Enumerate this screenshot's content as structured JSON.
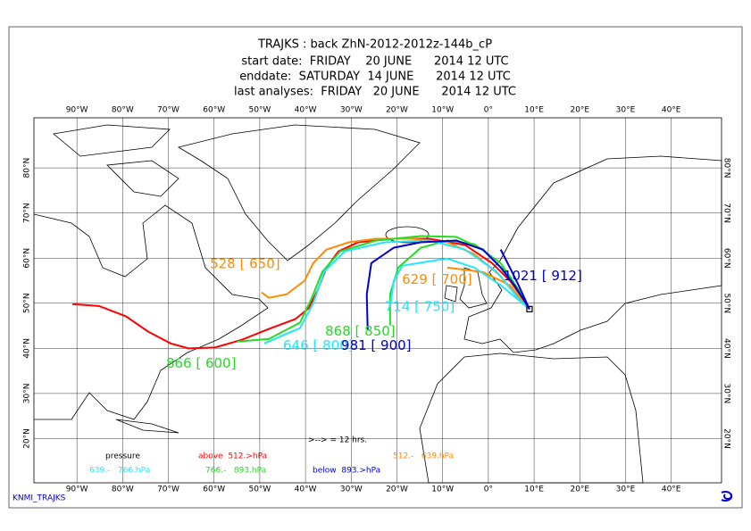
{
  "header": {
    "lines": [
      "TRAJKS : back ZhN-2012-2012z-144b_cP",
      "start date:  FRIDAY    20 JUNE      2014 12 UTC",
      "enddate:  SATURDAY  14 JUNE      2014 12 UTC",
      "last analyses:  FRIDAY   20 JUNE      2014 12 UTC"
    ]
  },
  "map": {
    "lonlim": [
      -99.4,
      51
    ],
    "latlim": [
      10.2,
      91.1
    ],
    "lonticks": [
      {
        "value": -90,
        "label": "90°W"
      },
      {
        "value": -80,
        "label": "80°W"
      },
      {
        "value": -70,
        "label": "70°W"
      },
      {
        "value": -60,
        "label": "60°W"
      },
      {
        "value": -50,
        "label": "50°W"
      },
      {
        "value": -40,
        "label": "40°W"
      },
      {
        "value": -30,
        "label": "30°W"
      },
      {
        "value": -20,
        "label": "20°W"
      },
      {
        "value": -10,
        "label": "10°W"
      },
      {
        "value": 0,
        "label": "0°"
      },
      {
        "value": 10,
        "label": "10°E"
      },
      {
        "value": 20,
        "label": "20°E"
      },
      {
        "value": 30,
        "label": "30°E"
      },
      {
        "value": 40,
        "label": "40°E"
      }
    ],
    "latticks": [
      {
        "value": 20,
        "label": "20°N"
      },
      {
        "value": 30,
        "label": "30°N"
      },
      {
        "value": 40,
        "label": "40°N"
      },
      {
        "value": 50,
        "label": "50°N"
      },
      {
        "value": 60,
        "label": "60°N"
      },
      {
        "value": 70,
        "label": "70°N"
      },
      {
        "value": 80,
        "label": "80°N"
      }
    ],
    "trajectories": [
      {
        "color": "#ff0000",
        "lon": [
          -91.0,
          -85.2,
          -79.3,
          -74.4,
          -69.5,
          -65.6,
          -59.8,
          -53.9,
          -48.0,
          -42.2,
          -39.3,
          -37.3,
          -35.4,
          -32.8,
          -28.5,
          -20.7,
          -12.9,
          -5.1,
          0.8,
          4.7,
          7.6,
          9.0
        ],
        "lat": [
          49.8,
          49.4,
          47.1,
          43.7,
          41.1,
          40.0,
          40.2,
          41.9,
          44.3,
          46.5,
          48.9,
          53.0,
          57.9,
          61.5,
          63.5,
          64.3,
          64.3,
          62.9,
          58.9,
          55.0,
          51.0,
          48.7
        ]
      },
      {
        "color": "#ff8c00",
        "lon": [
          -49.6,
          -48.0,
          -44.1,
          -40.2,
          -38.3,
          -35.4,
          -30.5,
          -24.6,
          -16.8,
          -9.0,
          -3.1,
          2.7,
          6.6,
          9.0
        ],
        "lat": [
          52.4,
          51.2,
          52.0,
          55.0,
          58.9,
          61.9,
          63.5,
          64.3,
          64.3,
          63.5,
          60.9,
          56.0,
          51.0,
          48.7
        ]
      },
      {
        "color": "#ff8c00",
        "lon": [
          -9.0,
          -1.2,
          4.7,
          9.0
        ],
        "lat": [
          57.9,
          56.9,
          54.0,
          48.7
        ]
      },
      {
        "color": "#22dd22",
        "lon": [
          -54.9,
          -48.0,
          -41.2,
          -38.7,
          -36.3,
          -32.4,
          -24.6,
          -14.8,
          -7.0,
          -1.2,
          4.7,
          9.0
        ],
        "lat": [
          41.5,
          42.1,
          45.7,
          51.0,
          57.0,
          61.5,
          63.9,
          64.9,
          64.7,
          61.9,
          56.0,
          48.7
        ]
      },
      {
        "color": "#22dd22",
        "lon": [
          -21.5,
          -21.5,
          -19.7,
          -14.8,
          -9.0,
          -3.1,
          2.7,
          6.6,
          9.0
        ],
        "lat": [
          45.1,
          52.0,
          57.9,
          62.3,
          63.9,
          63.1,
          58.9,
          53.0,
          48.7
        ]
      },
      {
        "color": "#22e5ff",
        "lon": [
          -49.0,
          -41.2,
          -38.3,
          -35.9,
          -31.4,
          -22.7,
          -12.9,
          -5.1,
          1.8,
          6.6,
          9.0
        ],
        "lat": [
          41.1,
          44.5,
          50.0,
          57.0,
          61.5,
          63.5,
          63.9,
          61.9,
          57.0,
          51.0,
          48.7
        ]
      },
      {
        "color": "#22e5ff",
        "lon": [
          -21.5,
          -20.7,
          -18.8,
          -12.9,
          -9.0,
          -3.1,
          2.7,
          9.0
        ],
        "lat": [
          49.1,
          55.0,
          58.3,
          59.3,
          59.9,
          57.9,
          54.0,
          48.7
        ]
      },
      {
        "color": "#0000cc",
        "lon": [
          -26.4,
          -26.6,
          -25.6,
          -20.7,
          -14.8,
          -7.0,
          -1.2,
          2.7,
          5.7,
          9.0
        ],
        "lat": [
          44.1,
          52.0,
          58.9,
          62.3,
          63.5,
          63.9,
          61.9,
          57.9,
          54.0,
          48.7
        ]
      },
      {
        "color": "#0000cc",
        "lon": [
          2.7,
          4.7,
          6.6,
          9.0
        ],
        "lat": [
          61.9,
          57.9,
          54.0,
          48.7
        ]
      }
    ],
    "labels": [
      {
        "text": "528 [ 650]",
        "color": "#ff8c00",
        "lon": -60.9,
        "lat": 58.7
      },
      {
        "text": "629 [ 700]",
        "color": "#ff8c00",
        "lon": -18.9,
        "lat": 55.2
      },
      {
        "text": "1021 [ 912]",
        "color": "#0000cc",
        "lon": 3.3,
        "lat": 56.0
      },
      {
        "text": "714 [ 750]",
        "color": "#22e5ff",
        "lon": -22.7,
        "lat": 49.2
      },
      {
        "text": "868 [ 850]",
        "color": "#22dd22",
        "lon": -35.7,
        "lat": 43.7
      },
      {
        "text": "646 [ 800]",
        "color": "#22e5ff",
        "lon": -44.9,
        "lat": 40.6
      },
      {
        "text": "981 [ 900]",
        "color": "#0000cc",
        "lon": -32.2,
        "lat": 40.6
      },
      {
        "text": "866 [ 600]",
        "color": "#22dd22",
        "lon": -70.5,
        "lat": 36.6
      }
    ]
  },
  "legend": {
    "note": ">--> = 12 hrs.",
    "title": "pressure",
    "entries": [
      {
        "label": "above  512.>hPa",
        "color": "#ff0000"
      },
      {
        "label": "512.-   639.hPa",
        "color": "#ff8c00"
      },
      {
        "label": "639.-   766.hPa",
        "color": "#22e5ff"
      },
      {
        "label": "766.-   893.hPa",
        "color": "#22dd22"
      },
      {
        "label": "below  893.>hPa",
        "color": "#0000cc"
      }
    ]
  },
  "footer": "KNMI_TRAJKS"
}
